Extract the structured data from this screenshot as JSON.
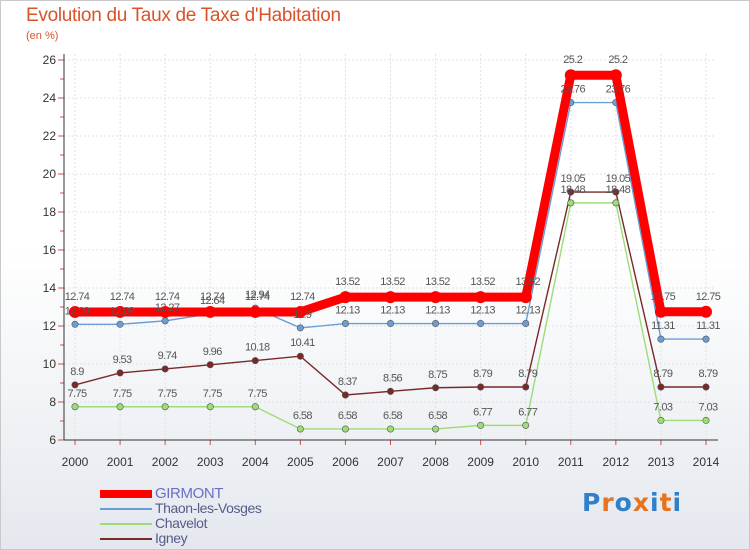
{
  "chart_data": {
    "type": "line",
    "title": "Evolution du Taux de Taxe d'Habitation",
    "ylabel": "(en %)",
    "xlabel": "",
    "ylim": [
      6,
      26
    ],
    "yticks": [
      "6",
      "8",
      "10",
      "12",
      "14",
      "16",
      "18",
      "20",
      "22",
      "24",
      "26"
    ],
    "categories": [
      "2000",
      "2001",
      "2002",
      "2003",
      "2004",
      "2005",
      "2006",
      "2007",
      "2008",
      "2009",
      "2010",
      "2011",
      "2012",
      "2013",
      "2014"
    ],
    "series": [
      {
        "name": "GIRMONT",
        "color": "#ff0000",
        "values": [
          12.74,
          12.74,
          12.74,
          12.74,
          12.74,
          12.74,
          13.52,
          13.52,
          13.52,
          13.52,
          13.52,
          25.2,
          25.2,
          12.75,
          12.75
        ],
        "labels": [
          "12.74",
          "12.74",
          "12.74",
          "12.74",
          "12.74",
          "12.74",
          "13.52",
          "13.52",
          "13.52",
          "13.52",
          "13.52",
          "25.2",
          "25.2",
          "12.75",
          "12.75"
        ]
      },
      {
        "name": "Thaon-les-Vosges",
        "color": "#6a9fd6",
        "values": [
          12.09,
          12.09,
          12.27,
          12.64,
          12.94,
          11.9,
          12.13,
          12.13,
          12.13,
          12.13,
          12.13,
          23.76,
          23.76,
          11.31,
          11.31
        ],
        "labels": [
          "12.09",
          "12.09",
          "12.27",
          "12.64",
          "12.94",
          "11.9",
          "12.13",
          "12.13",
          "12.13",
          "12.13",
          "12.13",
          "23.76",
          "23.76",
          "11.31",
          "11.31"
        ]
      },
      {
        "name": "Chavelot",
        "color": "#9ddc77",
        "values": [
          7.75,
          7.75,
          7.75,
          7.75,
          7.75,
          6.58,
          6.58,
          6.58,
          6.58,
          6.77,
          6.77,
          18.48,
          18.48,
          7.03,
          7.03
        ],
        "labels": [
          "7.75",
          "7.75",
          "7.75",
          "7.75",
          "7.75",
          "6.58",
          "6.58",
          "6.58",
          "6.58",
          "6.77",
          "6.77",
          "18.48",
          "18.48",
          "7.03",
          "7.03"
        ]
      },
      {
        "name": "Igney",
        "color": "#7a2828",
        "values": [
          8.9,
          9.53,
          9.74,
          9.96,
          10.18,
          10.41,
          8.37,
          8.56,
          8.75,
          8.79,
          8.79,
          19.05,
          19.05,
          8.79,
          8.79
        ],
        "labels": [
          "8.9",
          "9.53",
          "9.74",
          "9.96",
          "10.18",
          "10.41",
          "8.37",
          "8.56",
          "8.75",
          "8.79",
          "8.79",
          "19.05",
          "19.05",
          "8.79",
          "8.79"
        ]
      }
    ]
  },
  "logo": {
    "text": "Proxiti",
    "letters": [
      "P",
      "r",
      "o",
      "x",
      "i",
      "t",
      "i"
    ],
    "colors": [
      "#2f7fc9",
      "#e8731e",
      "#2f7fc9",
      "#e8731e",
      "#2f7fc9",
      "#e8731e",
      "#2f7fc9"
    ]
  }
}
